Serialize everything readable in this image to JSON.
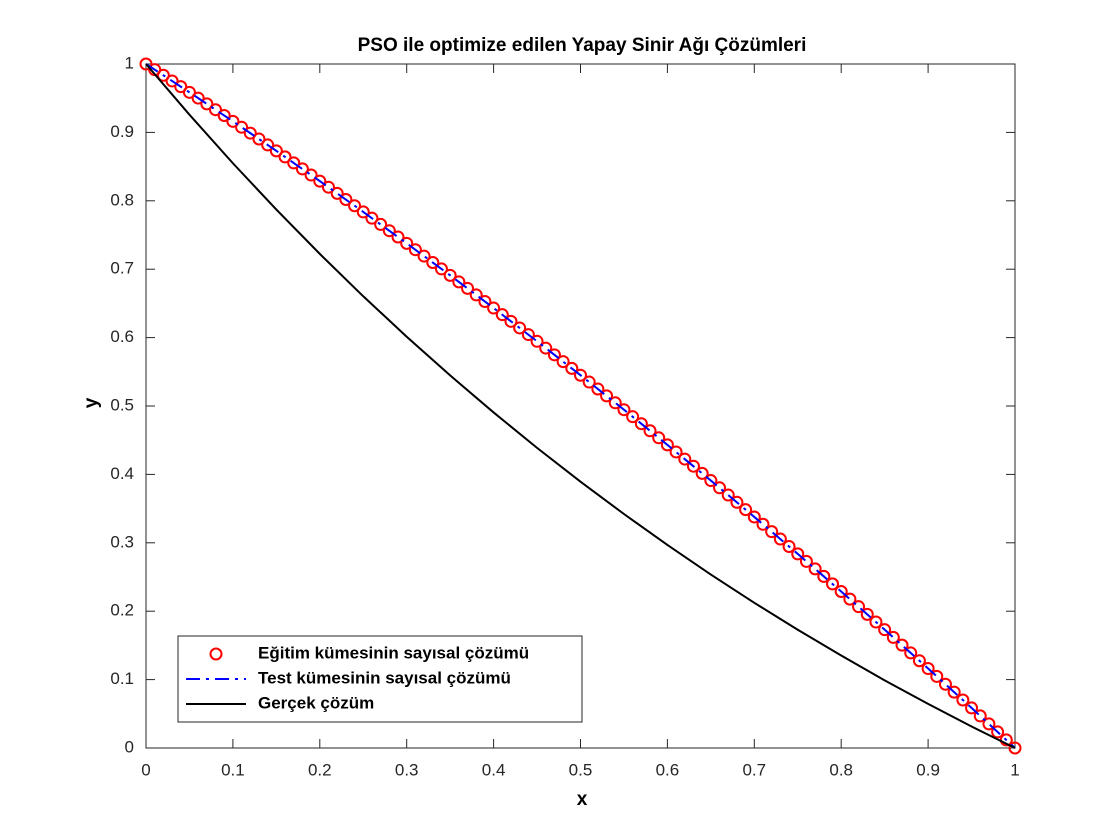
{
  "chart_data": {
    "type": "line",
    "title": "PSO ile optimize edilen Yapay Sinir Ağı Çözümleri",
    "xlabel": "x",
    "ylabel": "y",
    "xlim": [
      0,
      1
    ],
    "ylim": [
      0,
      1
    ],
    "xticks": [
      0,
      0.1,
      0.2,
      0.3,
      0.4,
      0.5,
      0.6,
      0.7,
      0.8,
      0.9,
      1
    ],
    "yticks": [
      0,
      0.1,
      0.2,
      0.3,
      0.4,
      0.5,
      0.6,
      0.7,
      0.8,
      0.9,
      1
    ],
    "legend": "lower-left",
    "series": [
      {
        "name": "Eğitim kümesinin sayısal çözümü",
        "color": "#ff0000",
        "marker": "o",
        "linestyle": "none",
        "x": [
          0,
          0.01,
          0.02,
          0.03,
          0.04,
          0.05,
          0.06,
          0.07,
          0.08,
          0.09,
          0.1,
          0.11,
          0.12,
          0.13,
          0.14,
          0.15,
          0.16,
          0.17,
          0.18,
          0.19,
          0.2,
          0.21,
          0.22,
          0.23,
          0.24,
          0.25,
          0.26,
          0.27,
          0.28,
          0.29,
          0.3,
          0.31,
          0.32,
          0.33,
          0.34,
          0.35,
          0.36,
          0.37,
          0.38,
          0.39,
          0.4,
          0.41,
          0.42,
          0.43,
          0.44,
          0.45,
          0.46,
          0.47,
          0.48,
          0.49,
          0.5,
          0.51,
          0.52,
          0.53,
          0.54,
          0.55,
          0.56,
          0.57,
          0.58,
          0.59,
          0.6,
          0.61,
          0.62,
          0.63,
          0.64,
          0.65,
          0.66,
          0.67,
          0.68,
          0.69,
          0.7,
          0.71,
          0.72,
          0.73,
          0.74,
          0.75,
          0.76,
          0.77,
          0.78,
          0.79,
          0.8,
          0.81,
          0.82,
          0.83,
          0.84,
          0.85,
          0.86,
          0.87,
          0.88,
          0.89,
          0.9,
          0.91,
          0.92,
          0.93,
          0.94,
          0.95,
          0.96,
          0.97,
          0.98,
          0.99,
          1
        ],
        "values": [
          1,
          0.9918,
          0.9835,
          0.9752,
          0.9669,
          0.9586,
          0.9502,
          0.9417,
          0.9332,
          0.9247,
          0.9162,
          0.9076,
          0.899,
          0.8904,
          0.8817,
          0.873,
          0.8642,
          0.8554,
          0.8466,
          0.8377,
          0.8288,
          0.8199,
          0.8109,
          0.8019,
          0.7928,
          0.7838,
          0.7746,
          0.7655,
          0.7563,
          0.7471,
          0.7378,
          0.7285,
          0.7192,
          0.7098,
          0.7004,
          0.691,
          0.6815,
          0.672,
          0.6624,
          0.6528,
          0.6432,
          0.6335,
          0.6238,
          0.6141,
          0.6044,
          0.5946,
          0.5847,
          0.5748,
          0.5649,
          0.555,
          0.545,
          0.535,
          0.5249,
          0.5148,
          0.5047,
          0.4946,
          0.4844,
          0.4741,
          0.4638,
          0.4535,
          0.4432,
          0.4328,
          0.4224,
          0.412,
          0.4015,
          0.391,
          0.3804,
          0.3698,
          0.3592,
          0.3485,
          0.3378,
          0.3271,
          0.3163,
          0.3055,
          0.2946,
          0.2838,
          0.2728,
          0.2619,
          0.2509,
          0.2399,
          0.2288,
          0.2177,
          0.2066,
          0.1954,
          0.1842,
          0.173,
          0.1617,
          0.1504,
          0.139,
          0.1276,
          0.1162,
          0.1047,
          0.0932,
          0.0817,
          0.0702,
          0.0586,
          0.0469,
          0.0352,
          0.0235,
          0.0118,
          0
        ]
      },
      {
        "name": "Test kümesinin sayısal çözümü",
        "color": "#0000ff",
        "linestyle": "-.",
        "x": [
          0,
          0.05,
          0.1,
          0.15,
          0.2,
          0.25,
          0.3,
          0.35,
          0.4,
          0.45,
          0.5,
          0.55,
          0.6,
          0.65,
          0.7,
          0.75,
          0.8,
          0.85,
          0.9,
          0.95,
          1
        ],
        "values": [
          1,
          0.9586,
          0.9162,
          0.873,
          0.8288,
          0.7838,
          0.7378,
          0.691,
          0.6432,
          0.5946,
          0.545,
          0.4946,
          0.4432,
          0.391,
          0.3378,
          0.2838,
          0.2288,
          0.173,
          0.1162,
          0.0586,
          0
        ]
      },
      {
        "name": "Gerçek çözüm",
        "color": "#000000",
        "linestyle": "-",
        "x": [
          0,
          0.05,
          0.1,
          0.15,
          0.2,
          0.25,
          0.3,
          0.35,
          0.4,
          0.45,
          0.5,
          0.55,
          0.6,
          0.65,
          0.7,
          0.75,
          0.8,
          0.85,
          0.9,
          0.95,
          1
        ],
        "values": [
          1,
          0.9259,
          0.8549,
          0.7872,
          0.7224,
          0.6604,
          0.6013,
          0.5447,
          0.4906,
          0.4388,
          0.3893,
          0.3421,
          0.2968,
          0.2536,
          0.2123,
          0.1729,
          0.1352,
          0.0989,
          0.0645,
          0.0315,
          0
        ]
      }
    ]
  }
}
